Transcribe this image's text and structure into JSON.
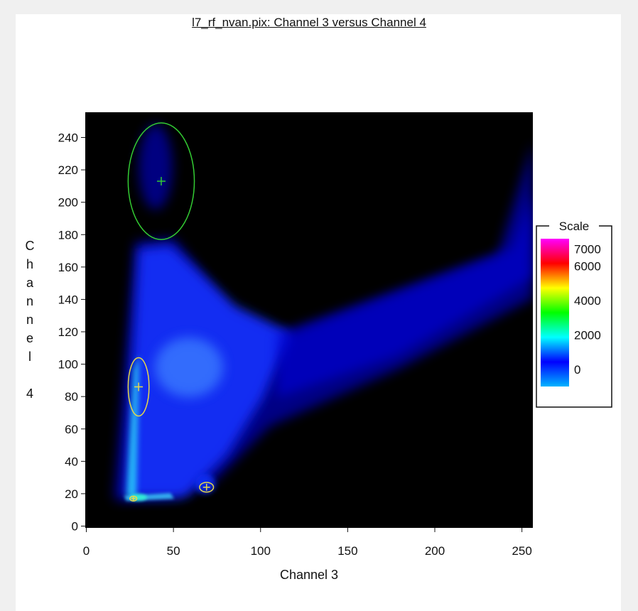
{
  "chart_data": {
    "type": "heatmap",
    "title": "l7_rf_nvan.pix: Channel 3 versus Channel 4",
    "xlabel": "Channel 3",
    "ylabel": "Channel 4",
    "xlim": [
      0,
      256
    ],
    "ylim": [
      0,
      256
    ],
    "xticks": [
      0,
      50,
      100,
      150,
      200,
      250
    ],
    "yticks": [
      0,
      20,
      40,
      60,
      80,
      100,
      120,
      140,
      160,
      180,
      200,
      220,
      240
    ],
    "background_color": "#000000",
    "legend": {
      "title": "Scale",
      "placement": "right",
      "ticks": [
        0,
        2000,
        4000,
        6000,
        7000
      ],
      "min": -1000,
      "max": 7600,
      "colors": [
        "#00b4ff",
        "#0000ff",
        "#00ffff",
        "#00ff00",
        "#ffff00",
        "#ff0000",
        "#ff00ff"
      ]
    },
    "clusters": [
      {
        "center": [
          43,
          213
        ],
        "radius": [
          19,
          36
        ],
        "color": "#33cc33"
      },
      {
        "center": [
          30,
          86
        ],
        "radius": [
          6,
          18
        ],
        "color": "#e6d84a"
      },
      {
        "center": [
          69,
          24
        ],
        "radius": [
          4,
          3
        ],
        "color": "#e6d84a"
      },
      {
        "center": [
          27,
          17
        ],
        "radius": [
          2,
          1.5
        ],
        "color": "#e6d84a"
      }
    ]
  }
}
